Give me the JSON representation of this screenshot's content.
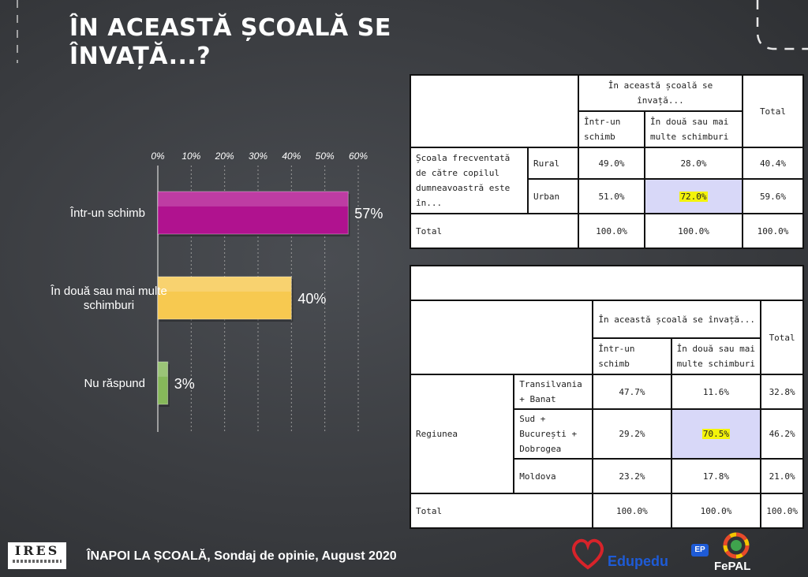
{
  "title": "ÎN ACEASTĂ ȘCOALĂ SE ÎNVAȚĂ...?",
  "chart_data": {
    "type": "bar",
    "orientation": "horizontal",
    "categories": [
      "Într-un schimb",
      "În două sau mai multe schimburi",
      "Nu răspund"
    ],
    "values": [
      57,
      40,
      3
    ],
    "data_labels": [
      "57%",
      "40%",
      "3%"
    ],
    "x_ticks": [
      "0%",
      "10%",
      "20%",
      "30%",
      "40%",
      "50%",
      "60%"
    ],
    "xlim": [
      0,
      60
    ],
    "colors": [
      "#b0128f",
      "#f7c950",
      "#86b85a"
    ]
  },
  "table1": {
    "header_group": "În această școală se învață...",
    "col1": "Într-un schimb",
    "col2": "În două sau mai multe schimburi",
    "total": "Total",
    "row_group": "Școala frecventată de către copilul dumneavoastră este în...",
    "rows": [
      {
        "label": "Rural",
        "v1": "49.0%",
        "v2": "28.0%",
        "total": "40.4%"
      },
      {
        "label": "Urban",
        "v1": "51.0%",
        "v2": "72.0%",
        "total": "59.6%"
      }
    ],
    "total_row": {
      "label": "Total",
      "v1": "100.0%",
      "v2": "100.0%",
      "total": "100.0%"
    }
  },
  "table2": {
    "header_group": "În această școală se învață...",
    "col1": "Într-un schimb",
    "col2": "În două sau mai multe schimburi",
    "total": "Total",
    "row_group": "Regiunea",
    "rows": [
      {
        "label": "Transilvania + Banat",
        "v1": "47.7%",
        "v2": "11.6%",
        "total": "32.8%"
      },
      {
        "label": "Sud + București + Dobrogea",
        "v1": "29.2%",
        "v2": "70.5%",
        "total": "46.2%"
      },
      {
        "label": "Moldova",
        "v1": "23.2%",
        "v2": "17.8%",
        "total": "21.0%"
      }
    ],
    "total_row": {
      "label": "Total",
      "v1": "100.0%",
      "v2": "100.0%",
      "total": "100.0%"
    }
  },
  "footer": {
    "prefix": "ÎNAPOI LA ȘCOALĂ",
    "rest": ", Sondaj de opinie, August 2020"
  },
  "logos": {
    "ires": "IRES",
    "edupedu": "Edupedu",
    "ep": "EP",
    "fepal": "FePAL",
    "heart_color": "#d8232a"
  }
}
